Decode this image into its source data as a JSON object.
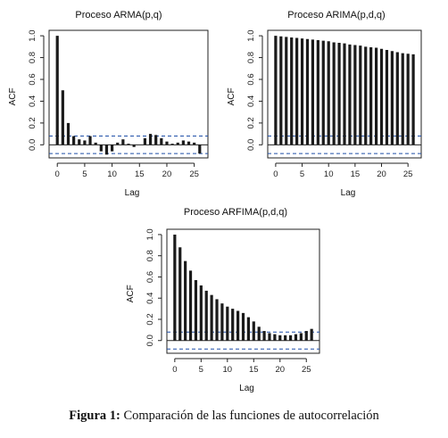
{
  "chart_data": [
    {
      "type": "bar",
      "subtype": "acf-correlogram",
      "title": "Proceso ARMA(p,q)",
      "xlabel": "Lag",
      "ylabel": "ACF",
      "x": [
        0,
        1,
        2,
        3,
        4,
        5,
        6,
        7,
        8,
        9,
        10,
        11,
        12,
        13,
        14,
        15,
        16,
        17,
        18,
        19,
        20,
        21,
        22,
        23,
        24,
        25,
        26
      ],
      "values": [
        1.0,
        0.5,
        0.2,
        0.08,
        0.05,
        0.04,
        0.08,
        0.02,
        -0.06,
        -0.09,
        -0.06,
        0.02,
        0.05,
        0.01,
        -0.02,
        0.0,
        0.06,
        0.1,
        0.09,
        0.06,
        0.03,
        0.01,
        0.02,
        0.04,
        0.03,
        0.02,
        -0.08
      ],
      "confidence_bands": [
        0.08,
        -0.08
      ],
      "xticks": [
        "0",
        "5",
        "10",
        "15",
        "20",
        "25"
      ],
      "yticks": [
        "0.0",
        "0.2",
        "0.4",
        "0.6",
        "0.8",
        "1.0"
      ],
      "xlim": [
        -1.5,
        27.5
      ],
      "ylim": [
        -0.12,
        1.05
      ]
    },
    {
      "type": "bar",
      "subtype": "acf-correlogram",
      "title": "Proceso ARIMA(p,d,q)",
      "xlabel": "Lag",
      "ylabel": "ACF",
      "x": [
        0,
        1,
        2,
        3,
        4,
        5,
        6,
        7,
        8,
        9,
        10,
        11,
        12,
        13,
        14,
        15,
        16,
        17,
        18,
        19,
        20,
        21,
        22,
        23,
        24,
        25,
        26
      ],
      "values": [
        1.0,
        0.995,
        0.99,
        0.985,
        0.98,
        0.975,
        0.97,
        0.965,
        0.96,
        0.955,
        0.95,
        0.94,
        0.935,
        0.93,
        0.92,
        0.915,
        0.91,
        0.9,
        0.895,
        0.89,
        0.88,
        0.87,
        0.86,
        0.85,
        0.84,
        0.835,
        0.83
      ],
      "confidence_bands": [
        0.08,
        -0.08
      ],
      "xticks": [
        "0",
        "5",
        "10",
        "15",
        "20",
        "25"
      ],
      "yticks": [
        "0.0",
        "0.2",
        "0.4",
        "0.6",
        "0.8",
        "1.0"
      ],
      "xlim": [
        -1.5,
        27.5
      ],
      "ylim": [
        -0.12,
        1.05
      ]
    },
    {
      "type": "bar",
      "subtype": "acf-correlogram",
      "title": "Proceso ARFIMA(p,d,q)",
      "xlabel": "Lag",
      "ylabel": "ACF",
      "x": [
        0,
        1,
        2,
        3,
        4,
        5,
        6,
        7,
        8,
        9,
        10,
        11,
        12,
        13,
        14,
        15,
        16,
        17,
        18,
        19,
        20,
        21,
        22,
        23,
        24,
        25,
        26
      ],
      "values": [
        1.0,
        0.88,
        0.75,
        0.66,
        0.57,
        0.52,
        0.47,
        0.43,
        0.39,
        0.35,
        0.32,
        0.3,
        0.28,
        0.26,
        0.22,
        0.18,
        0.13,
        0.09,
        0.07,
        0.06,
        0.05,
        0.05,
        0.05,
        0.06,
        0.07,
        0.09,
        0.11
      ],
      "confidence_bands": [
        0.08,
        -0.08
      ],
      "xticks": [
        "0",
        "5",
        "10",
        "15",
        "20",
        "25"
      ],
      "yticks": [
        "0.0",
        "0.2",
        "0.4",
        "0.6",
        "0.8",
        "1.0"
      ],
      "xlim": [
        -1.5,
        27.5
      ],
      "ylim": [
        -0.12,
        1.05
      ]
    }
  ],
  "caption": {
    "label": "Figura 1:",
    "text": " Comparación de las funciones de autocorrelación"
  },
  "colors": {
    "bars": "#1a1a1a",
    "axes": "#222222",
    "bands": "#1f4fa8"
  }
}
